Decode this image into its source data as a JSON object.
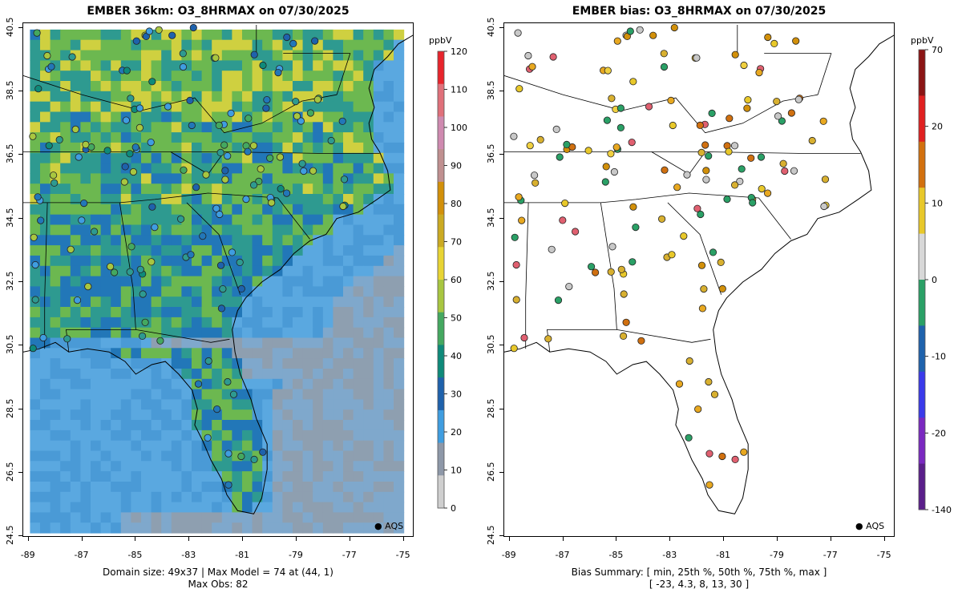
{
  "left_panel": {
    "title": "EMBER 36km: O3_8HRMAX on 07/30/2025",
    "footer_line1": "Domain size: 49x37 | Max Model = 74 at (44, 1)",
    "footer_line2": "Max Obs: 82",
    "legend_label": "AQS",
    "colorbar": {
      "unit": "ppbV",
      "labels": [
        "120",
        "110",
        "100",
        "90",
        "80",
        "70",
        "60",
        "50",
        "40",
        "30",
        "20",
        "10",
        "0"
      ],
      "colors": [
        "#e8242c",
        "#e0707a",
        "#cf8ab0",
        "#c09090",
        "#d2900a",
        "#cbaa22",
        "#e8d434",
        "#a8c640",
        "#44a860",
        "#0e8a7a",
        "#1e62ac",
        "#3f9de0",
        "#8e98a8",
        "#cfcfcf"
      ]
    }
  },
  "right_panel": {
    "title": "EMBER bias: O3_8HRMAX on 07/30/2025",
    "footer_line1": "Bias Summary: [ min, 25th %, 50th %, 75th %, max ]",
    "footer_line2": "[ -23,   4.3,   8,   13,   30 ]",
    "legend_label": "AQS",
    "colorbar": {
      "unit": "ppbV",
      "labels": [
        "70",
        "20",
        "10",
        "0",
        "-10",
        "-20",
        "-140"
      ],
      "colors": [
        "#8b1414",
        "#e02020",
        "#d2700e",
        "#e8c82a",
        "#d8d8d8",
        "#2aa066",
        "#1e62ac",
        "#3a3aea",
        "#7a28c0",
        "#5a1e8a"
      ]
    }
  },
  "axes": {
    "x_ticks": [
      "-89",
      "-87",
      "-85",
      "-83",
      "-81",
      "-79",
      "-77",
      "-75"
    ],
    "y_ticks": [
      "40.5",
      "38.5",
      "36.5",
      "34.5",
      "32.5",
      "30.5",
      "28.5",
      "26.5",
      "24.5"
    ],
    "lon_range": [
      -89.2,
      -74.6
    ],
    "lat_range": [
      24.45,
      40.65
    ]
  },
  "map_colors": {
    "ocean_far": "#8e9fb0",
    "ocean_near": "#5aa8e0",
    "land_low": "#2277b8",
    "land_mid": "#2e9a90",
    "land_high": "#6cb850",
    "land_peak": "#cfd040"
  }
}
